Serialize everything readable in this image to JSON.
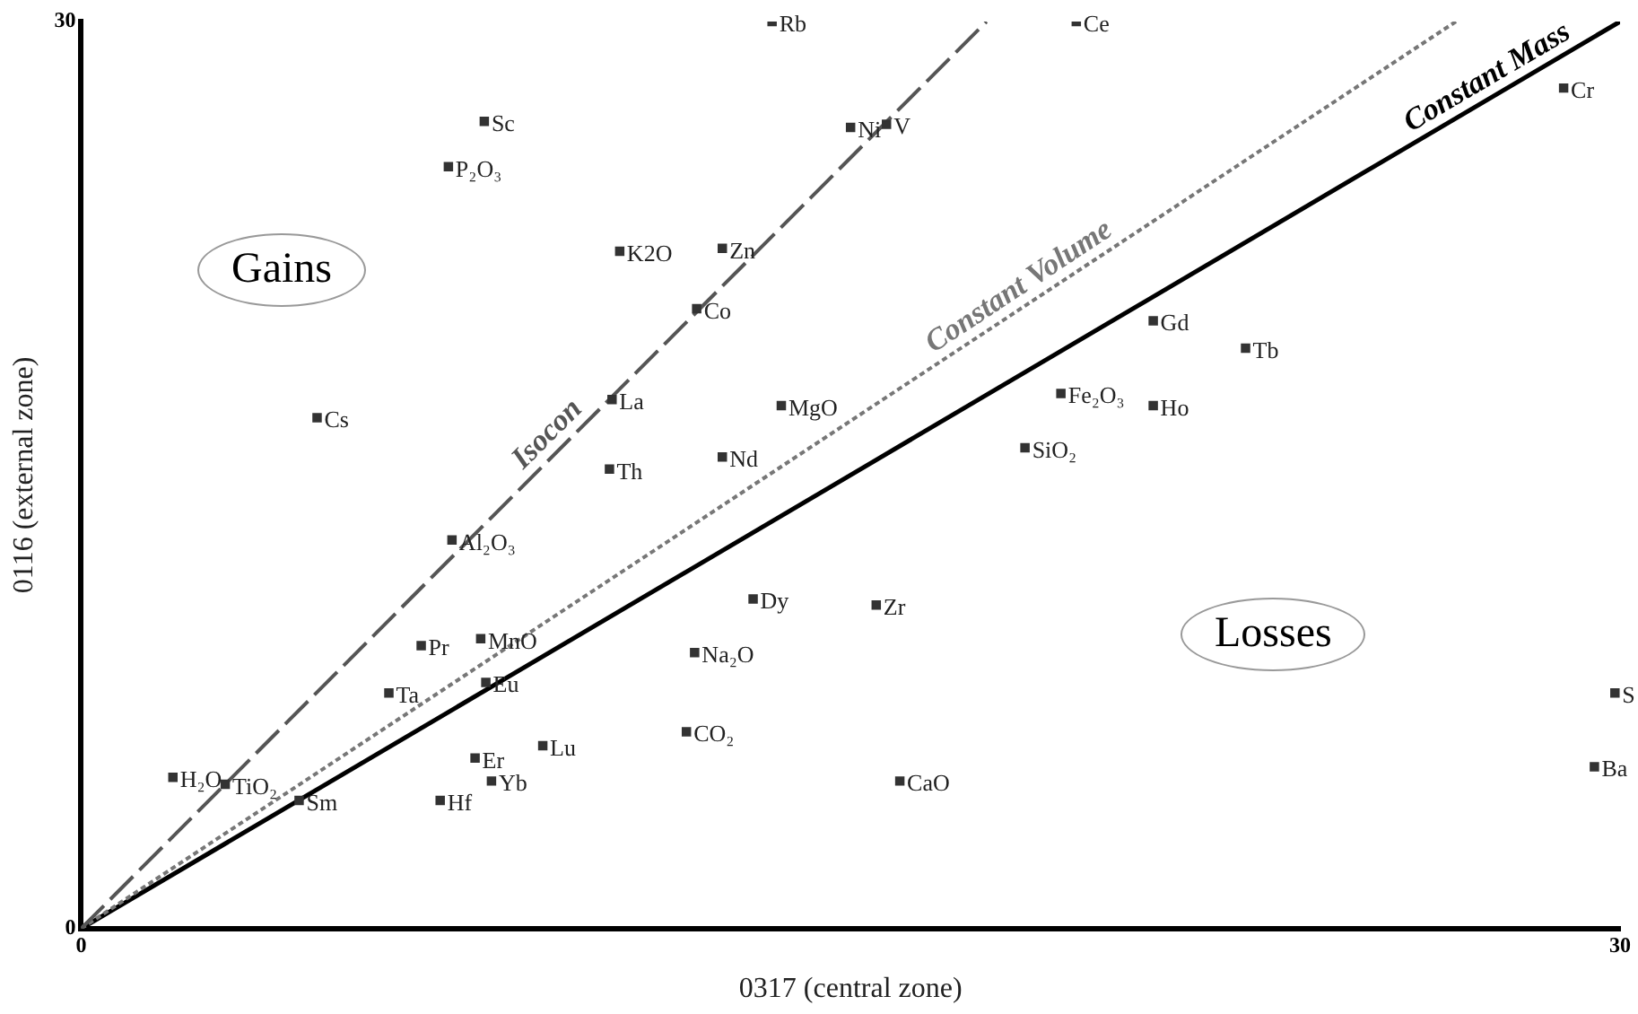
{
  "chart_data": {
    "type": "scatter",
    "xlabel": "0317 (central zone)",
    "ylabel": "0116 (external zone)",
    "xlim": [
      0,
      30
    ],
    "ylim": [
      0,
      30
    ],
    "xticks": [
      0,
      30
    ],
    "yticks": [
      0,
      30
    ],
    "grid": false,
    "legend": false,
    "marker": "square",
    "annotations": [
      "Gains",
      "Losses"
    ],
    "series": [
      {
        "name": "Isocon",
        "type": "line",
        "marker": "none",
        "line_style": "dashed",
        "color": "#555555",
        "x": [
          0,
          17.65
        ],
        "values": [
          0,
          30
        ]
      },
      {
        "name": "Constant Volume",
        "type": "line",
        "marker": "none",
        "line_style": "dotted",
        "color": "#777777",
        "x": [
          0,
          26.8
        ],
        "values": [
          0,
          30
        ]
      },
      {
        "name": "Constant Mass",
        "type": "line",
        "marker": "none",
        "line_style": "solid",
        "color": "#000000",
        "x": [
          0,
          30
        ],
        "values": [
          0,
          30
        ]
      },
      {
        "name": "Rb",
        "color": "#333333",
        "x": [
          13.47
        ],
        "values": [
          30
        ]
      },
      {
        "name": "Ce",
        "color": "#333333",
        "x": [
          19.4
        ],
        "values": [
          30
        ]
      },
      {
        "name": "Sc",
        "color": "#333333",
        "x": [
          7.86
        ],
        "values": [
          26.7
        ]
      },
      {
        "name": "P₂O₃",
        "color": "#333333",
        "x": [
          7.16
        ],
        "values": [
          25.2
        ]
      },
      {
        "name": "Ni",
        "color": "#333333",
        "x": [
          15.0
        ],
        "values": [
          26.5
        ]
      },
      {
        "name": "V",
        "color": "#333333",
        "x": [
          15.7
        ],
        "values": [
          26.6
        ]
      },
      {
        "name": "Cr",
        "color": "#333333",
        "x": [
          28.9
        ],
        "values": [
          27.8
        ]
      },
      {
        "name": "K2O",
        "color": "#333333",
        "x": [
          10.5
        ],
        "values": [
          22.4
        ]
      },
      {
        "name": "Zn",
        "color": "#333333",
        "x": [
          12.5
        ],
        "values": [
          22.5
        ]
      },
      {
        "name": "Co",
        "color": "#333333",
        "x": [
          12.0
        ],
        "values": [
          20.5
        ]
      },
      {
        "name": "Gd",
        "color": "#333333",
        "x": [
          20.9
        ],
        "values": [
          20.1
        ]
      },
      {
        "name": "Tb",
        "color": "#333333",
        "x": [
          22.7
        ],
        "values": [
          19.2
        ]
      },
      {
        "name": "La",
        "color": "#333333",
        "x": [
          10.35
        ],
        "values": [
          17.5
        ]
      },
      {
        "name": "MgO",
        "color": "#333333",
        "x": [
          13.65
        ],
        "values": [
          17.3
        ]
      },
      {
        "name": "Fe₂O₃",
        "color": "#333333",
        "x": [
          19.1
        ],
        "values": [
          17.7
        ]
      },
      {
        "name": "Ho",
        "color": "#333333",
        "x": [
          20.9
        ],
        "values": [
          17.3
        ]
      },
      {
        "name": "Cs",
        "color": "#333333",
        "x": [
          4.6
        ],
        "values": [
          16.9
        ]
      },
      {
        "name": "Nd",
        "color": "#333333",
        "x": [
          12.5
        ],
        "values": [
          15.6
        ]
      },
      {
        "name": "SiO₂",
        "color": "#333333",
        "x": [
          18.4
        ],
        "values": [
          15.9
        ]
      },
      {
        "name": "Th",
        "color": "#333333",
        "x": [
          10.3
        ],
        "values": [
          15.2
        ]
      },
      {
        "name": "Al₂O₃",
        "color": "#333333",
        "x": [
          7.23
        ],
        "values": [
          12.85
        ]
      },
      {
        "name": "Dy",
        "color": "#333333",
        "x": [
          13.1
        ],
        "values": [
          10.9
        ]
      },
      {
        "name": "Zr",
        "color": "#333333",
        "x": [
          15.5
        ],
        "values": [
          10.7
        ]
      },
      {
        "name": "Pr",
        "color": "#333333",
        "x": [
          6.63
        ],
        "values": [
          9.36
        ]
      },
      {
        "name": "MnO",
        "color": "#333333",
        "x": [
          7.79
        ],
        "values": [
          9.59
        ]
      },
      {
        "name": "Na₂O",
        "color": "#333333",
        "x": [
          11.96
        ],
        "values": [
          9.13
        ]
      },
      {
        "name": "Ta",
        "color": "#333333",
        "x": [
          6.0
        ],
        "values": [
          7.79
        ]
      },
      {
        "name": "Eu",
        "color": "#333333",
        "x": [
          7.89
        ],
        "values": [
          8.14
        ]
      },
      {
        "name": "S",
        "color": "#333333",
        "x": [
          29.9
        ],
        "values": [
          7.79
        ]
      },
      {
        "name": "CO₂",
        "color": "#333333",
        "x": [
          11.8
        ],
        "values": [
          6.51
        ]
      },
      {
        "name": "Lu",
        "color": "#333333",
        "x": [
          9.0
        ],
        "values": [
          6.05
        ]
      },
      {
        "name": "Er",
        "color": "#333333",
        "x": [
          7.68
        ],
        "values": [
          5.64
        ]
      },
      {
        "name": "Ba",
        "color": "#333333",
        "x": [
          29.5
        ],
        "values": [
          5.35
        ]
      },
      {
        "name": "H₂O",
        "color": "#333333",
        "x": [
          1.79
        ],
        "values": [
          5.0
        ]
      },
      {
        "name": "TiO₂",
        "color": "#333333",
        "x": [
          2.81
        ],
        "values": [
          4.77
        ]
      },
      {
        "name": "Yb",
        "color": "#333333",
        "x": [
          8.0
        ],
        "values": [
          4.88
        ]
      },
      {
        "name": "CaO",
        "color": "#333333",
        "x": [
          15.96
        ],
        "values": [
          4.88
        ]
      },
      {
        "name": "Sm",
        "color": "#333333",
        "x": [
          4.25
        ],
        "values": [
          4.24
        ]
      },
      {
        "name": "Hf",
        "color": "#333333",
        "x": [
          7.0
        ],
        "values": [
          4.24
        ]
      }
    ]
  }
}
